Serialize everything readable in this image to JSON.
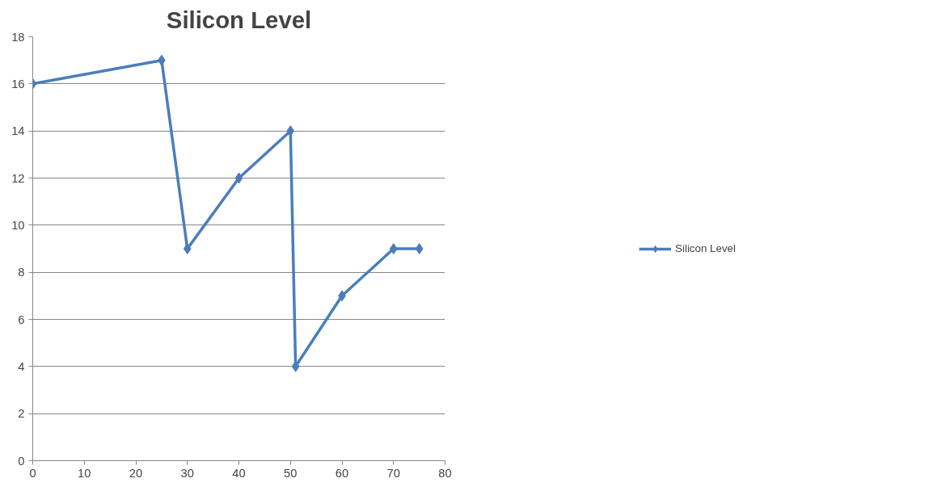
{
  "chart_data": {
    "type": "line",
    "title": "Silicon Level",
    "x": [
      0,
      25,
      30,
      40,
      50,
      51,
      60,
      70,
      75
    ],
    "series": [
      {
        "name": "Silicon Level",
        "color": "#4a7ebb",
        "values": [
          16,
          17,
          9,
          12,
          14,
          4,
          7,
          9,
          9
        ]
      }
    ],
    "xlim": [
      0,
      80
    ],
    "xticks": [
      0,
      10,
      20,
      30,
      40,
      50,
      60,
      70,
      80
    ],
    "ylim": [
      0,
      18
    ],
    "yticks": [
      0,
      2,
      4,
      6,
      8,
      10,
      12,
      14,
      16,
      18
    ],
    "grid": "y",
    "legend": "right",
    "marker": "diamond",
    "line_style": "solid"
  }
}
